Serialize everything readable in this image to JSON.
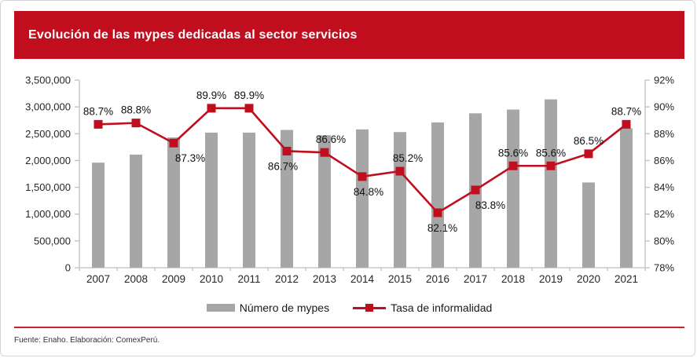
{
  "header": {
    "title": "Evolución de las mypes dedicadas al sector servicios"
  },
  "colors": {
    "accent_red": "#c00e1e",
    "bar_gray": "#a6a6a6",
    "axis_gray": "#bfbfbf",
    "text_dark": "#262626",
    "label_black": "#111111"
  },
  "legend": {
    "items": [
      {
        "label": "Número de mypes",
        "swatch": "bar"
      },
      {
        "label": "Tasa de informalidad",
        "swatch": "line"
      }
    ]
  },
  "footer": {
    "source_note": "Fuente: Enaho. Elaboración: ComexPerú."
  },
  "chart_data": {
    "type": "bar",
    "subtype": "combo bar + line, dual axis",
    "title": "Evolución de las mypes dedicadas al sector servicios",
    "categories": [
      "2007",
      "2008",
      "2009",
      "2010",
      "2011",
      "2012",
      "2013",
      "2014",
      "2015",
      "2016",
      "2017",
      "2018",
      "2019",
      "2020",
      "2021"
    ],
    "series": [
      {
        "name": "Número de mypes",
        "chart": "bar",
        "axis": "left",
        "color": "#a6a6a6",
        "values": [
          1960000,
          2110000,
          2430000,
          2520000,
          2520000,
          2570000,
          2470000,
          2580000,
          2530000,
          2710000,
          2880000,
          2950000,
          3140000,
          1590000,
          2600000
        ]
      },
      {
        "name": "Tasa de informalidad",
        "chart": "line",
        "axis": "right",
        "color": "#c00e1e",
        "values": [
          88.7,
          88.8,
          87.3,
          89.9,
          89.9,
          86.7,
          86.6,
          84.8,
          85.2,
          82.1,
          83.8,
          85.6,
          85.6,
          86.5,
          88.7
        ],
        "point_labels": [
          "88.7%",
          "88.8%",
          "87.3%",
          "89.9%",
          "89.9%",
          "86.7%",
          "86.6%",
          "84.8%",
          "85.2%",
          "82.1%",
          "83.8%",
          "85.6%",
          "85.6%",
          "86.5%",
          "88.7%"
        ],
        "label_positions": [
          "above",
          "above",
          "below",
          "above",
          "above",
          "below",
          "above",
          "below",
          "above",
          "below",
          "below",
          "above",
          "above",
          "above",
          "above"
        ],
        "label_dx": [
          0,
          0,
          21,
          0,
          0,
          -5,
          8,
          8,
          10,
          6,
          19,
          0,
          0,
          0,
          0
        ]
      }
    ],
    "left_axis": {
      "min": 0,
      "max": 3500000,
      "step": 500000,
      "tick_labels": [
        "0",
        "500,000",
        "1,000,000",
        "1,500,000",
        "2,000,000",
        "2,500,000",
        "3,000,000",
        "3,500,000"
      ]
    },
    "right_axis": {
      "min": 78,
      "max": 92,
      "step": 2,
      "tick_labels": [
        "78%",
        "80%",
        "82%",
        "84%",
        "86%",
        "88%",
        "90%",
        "92%"
      ]
    },
    "grid": false,
    "legend_position": "bottom"
  }
}
